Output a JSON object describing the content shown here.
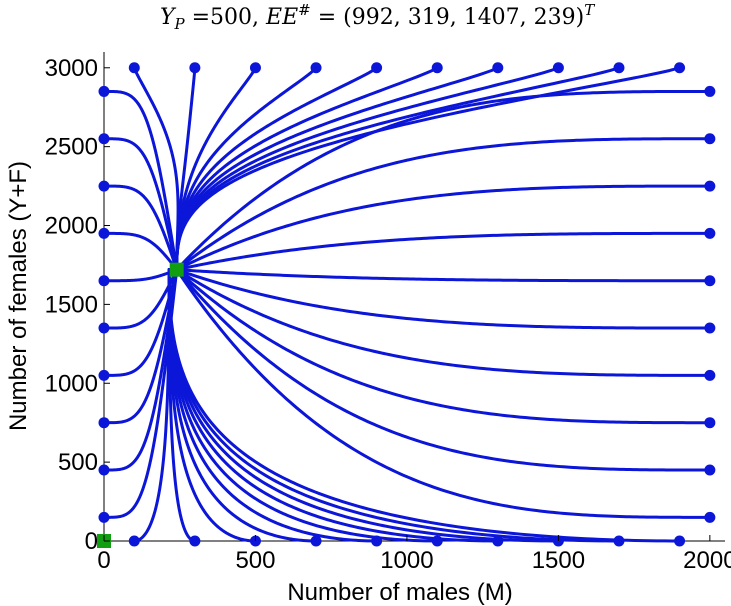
{
  "chart_data": {
    "type": "line",
    "title_parts": {
      "y_symbol": "Y",
      "y_sub": "P",
      "mid": " =500, ",
      "ee": "EE",
      "hash": "#",
      "rest": " = (992, 319, 1407, 239)",
      "sup_t": "T"
    },
    "xlabel": "Number of males (M)",
    "ylabel": "Number of females (Y+F)",
    "xlim": [
      0,
      2050
    ],
    "ylim": [
      0,
      3100
    ],
    "xticks": [
      0,
      500,
      1000,
      1500,
      2000
    ],
    "yticks": [
      0,
      500,
      1000,
      1500,
      2000,
      2500,
      3000
    ],
    "grid": false,
    "line_color": "#0b16d8",
    "equilibrium_color": "#119e11",
    "equilibria": [
      {
        "m": 0,
        "f": 0
      },
      {
        "m": 240,
        "f": 1720
      }
    ],
    "trajectories": {
      "top_starts_m": [
        100,
        300,
        500,
        700,
        900,
        1100,
        1300,
        1500,
        1700,
        1900
      ],
      "top_start_f": 3000,
      "bottom_starts_m": [
        100,
        300,
        500,
        700,
        900,
        1100,
        1300,
        1500,
        1700,
        1900
      ],
      "bottom_start_f": 0,
      "left_starts_f": [
        150,
        450,
        750,
        1050,
        1350,
        1650,
        1950,
        2250,
        2550,
        2850
      ],
      "left_start_m": 0,
      "right_starts_f": [
        150,
        450,
        750,
        1050,
        1350,
        1650,
        1950,
        2250,
        2550,
        2850
      ],
      "right_start_m": 2000
    }
  }
}
